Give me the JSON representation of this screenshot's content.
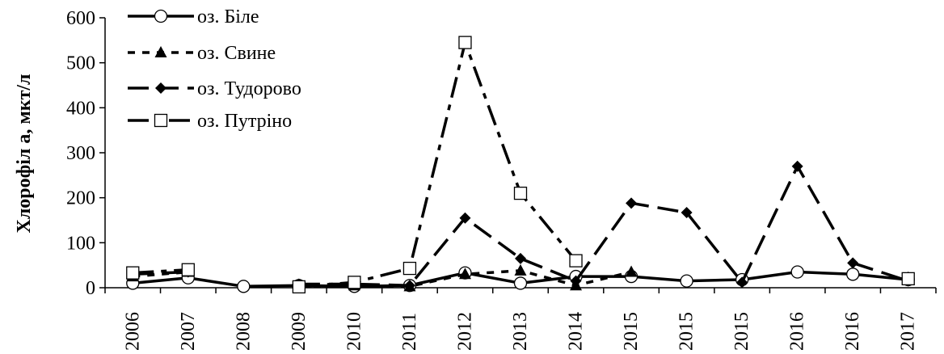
{
  "chart_data": {
    "type": "line",
    "title": "",
    "xlabel": "",
    "ylabel": "Хлорофіл a, мкт/л",
    "ylim": [
      0,
      600
    ],
    "yticks": [
      0,
      100,
      200,
      300,
      400,
      500,
      600
    ],
    "categories": [
      "2006",
      "2007",
      "2008",
      "2009",
      "2010",
      "2011",
      "2012",
      "2013",
      "2014",
      "2015",
      "2015",
      "2015",
      "2016",
      "2016",
      "2017"
    ],
    "grid": false,
    "legend_position": "top-left",
    "series": [
      {
        "name": "оз. Біле",
        "marker": "circle-open",
        "dash": "solid",
        "values": [
          10,
          22,
          3,
          5,
          3,
          5,
          33,
          10,
          25,
          25,
          15,
          18,
          35,
          30,
          18
        ]
      },
      {
        "name": "оз. Свине",
        "marker": "triangle-filled",
        "dash": "short-dash",
        "values": [
          25,
          35,
          null,
          3,
          5,
          3,
          30,
          38,
          5,
          35,
          null,
          null,
          null,
          null,
          22
        ]
      },
      {
        "name": "оз. Тудорово",
        "marker": "diamond-filled",
        "dash": "long-dash",
        "values": [
          30,
          35,
          null,
          8,
          8,
          5,
          155,
          65,
          15,
          188,
          167,
          12,
          270,
          55,
          15
        ]
      },
      {
        "name": "оз. Путріно",
        "marker": "square-open",
        "dash": "dash-dot",
        "values": [
          33,
          40,
          null,
          2,
          12,
          43,
          545,
          210,
          60,
          null,
          null,
          null,
          null,
          null,
          20
        ]
      }
    ]
  }
}
